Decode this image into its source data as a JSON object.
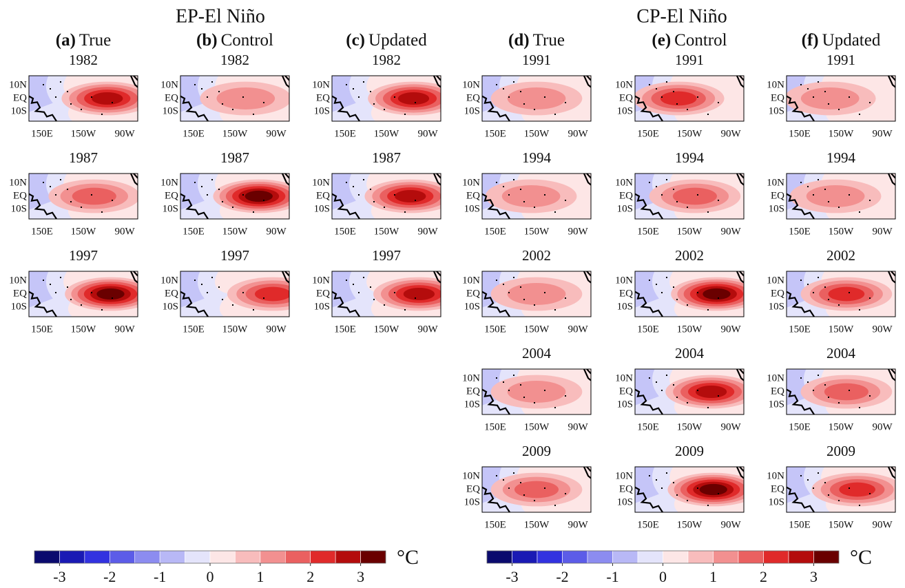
{
  "groups": [
    {
      "title": "EP-El Niño",
      "columns": [
        {
          "letter": "(a)",
          "label": "True",
          "years": [
            "1982",
            "1987",
            "1997"
          ]
        },
        {
          "letter": "(b)",
          "label": "Control",
          "years": [
            "1982",
            "1987",
            "1997"
          ]
        },
        {
          "letter": "(c)",
          "label": "Updated",
          "years": [
            "1982",
            "1987",
            "1997"
          ]
        }
      ]
    },
    {
      "title": "CP-El Niño",
      "columns": [
        {
          "letter": "(d)",
          "label": "True",
          "years": [
            "1991",
            "1994",
            "2002",
            "2004",
            "2009"
          ]
        },
        {
          "letter": "(e)",
          "label": "Control",
          "years": [
            "1991",
            "1994",
            "2002",
            "2004",
            "2009"
          ]
        },
        {
          "letter": "(f)",
          "label": "Updated",
          "years": [
            "1991",
            "1994",
            "2002",
            "2004",
            "2009"
          ]
        }
      ]
    }
  ],
  "lat_labels": [
    "10N",
    "EQ",
    "10S"
  ],
  "lon_labels": [
    "150E",
    "150W",
    "90W"
  ],
  "colorbar": {
    "lim": [
      -3.5,
      3.5
    ],
    "ticks": [
      -3,
      -2,
      -1,
      0,
      1,
      2,
      3
    ],
    "unit": "°C",
    "colors": [
      "#0a0a6e",
      "#1a1ab4",
      "#3232e0",
      "#5c5ce8",
      "#8c8cf0",
      "#b8b8f6",
      "#e4e4fb",
      "#fde6e6",
      "#f8bcbc",
      "#f29090",
      "#ea6060",
      "#e02a2a",
      "#b40c0c",
      "#6a0000"
    ]
  }
}
